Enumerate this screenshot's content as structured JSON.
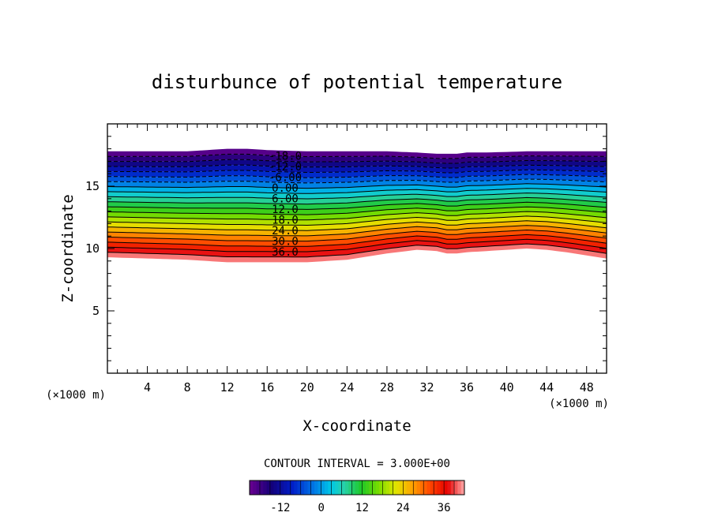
{
  "chart_data": {
    "type": "heatmap",
    "title": "disturbunce of potential temperature",
    "xlabel": "X-coordinate",
    "ylabel": "Z-coordinate",
    "x_unit_label": "(×1000 m)",
    "y_unit_label": "(×1000 m)",
    "xlim": [
      0,
      50
    ],
    "ylim": [
      0,
      20
    ],
    "x_ticks": [
      4,
      8,
      12,
      16,
      20,
      24,
      28,
      32,
      36,
      40,
      44,
      48
    ],
    "y_ticks": [
      5,
      10,
      15
    ],
    "contour_interval_text": "CONTOUR INTERVAL = 3.000E+00",
    "contour_labels": [
      "-18.0",
      "-12.0",
      "-6.00",
      "0.00",
      "6.00",
      "12.0",
      "18.0",
      "24.0",
      "30.0",
      "36.0"
    ],
    "contour_levels": [
      -18,
      -15,
      -12,
      -9,
      -6,
      -3,
      0,
      3,
      6,
      9,
      12,
      15,
      18,
      21,
      24,
      27,
      30,
      33,
      36,
      39
    ],
    "colorbar": {
      "range": [
        -21,
        42
      ],
      "ticks": [
        -12,
        0,
        12,
        24,
        36
      ]
    },
    "profiles": {
      "x": [
        0,
        4,
        8,
        12,
        14,
        16,
        20,
        24,
        28,
        31,
        33,
        34,
        35,
        36,
        38,
        42,
        44,
        46,
        50
      ],
      "top_z": [
        17.8,
        17.8,
        17.8,
        18.0,
        18.0,
        17.9,
        17.8,
        17.8,
        17.8,
        17.7,
        17.6,
        17.6,
        17.6,
        17.7,
        17.7,
        17.8,
        17.8,
        17.8,
        17.8
      ],
      "bottom_z": [
        9.3,
        9.2,
        9.1,
        8.9,
        8.9,
        8.9,
        8.9,
        9.1,
        9.6,
        9.9,
        9.8,
        9.6,
        9.6,
        9.7,
        9.8,
        10.0,
        9.9,
        9.7,
        9.2
      ]
    },
    "colors": {
      "coldest": "#6a0090",
      "zero": "#20d0c0",
      "warmest": "#ffa0a0"
    }
  }
}
